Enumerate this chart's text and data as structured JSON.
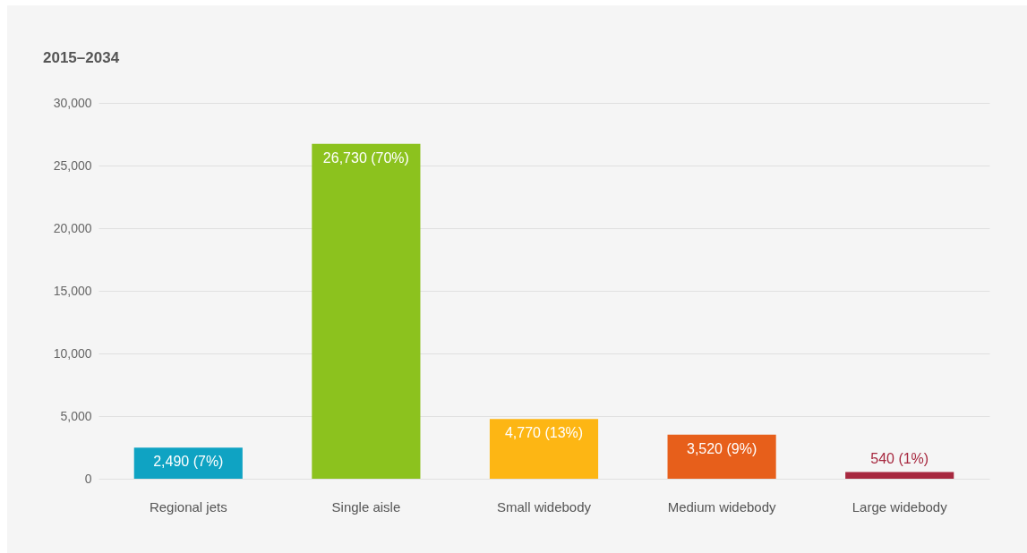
{
  "chart_data": {
    "type": "bar",
    "title": "2015–2034",
    "categories": [
      "Regional jets",
      "Single aisle",
      "Small widebody",
      "Medium widebody",
      "Large widebody"
    ],
    "values": [
      2490,
      26730,
      4770,
      3520,
      540
    ],
    "colors": [
      "#0fa3c3",
      "#8cc21e",
      "#fdb614",
      "#e75f1b",
      "#a7283f"
    ],
    "value_labels": [
      "2,490 (7%)",
      "26,730 (70%)",
      "4,770 (13%)",
      "3,520 (9%)",
      "540 (1%)"
    ],
    "ylim": [
      0,
      30000
    ],
    "yticks": [
      0,
      {
        "value": 5000,
        "label": "5,000"
      },
      {
        "value": 10000,
        "label": "10,000"
      },
      {
        "value": 15000,
        "label": "15,000"
      },
      {
        "value": 20000,
        "label": "20,000"
      },
      {
        "value": 25000,
        "label": "25,000"
      },
      {
        "value": 30000,
        "label": "30,000"
      }
    ],
    "grid": "y",
    "legend": false
  }
}
